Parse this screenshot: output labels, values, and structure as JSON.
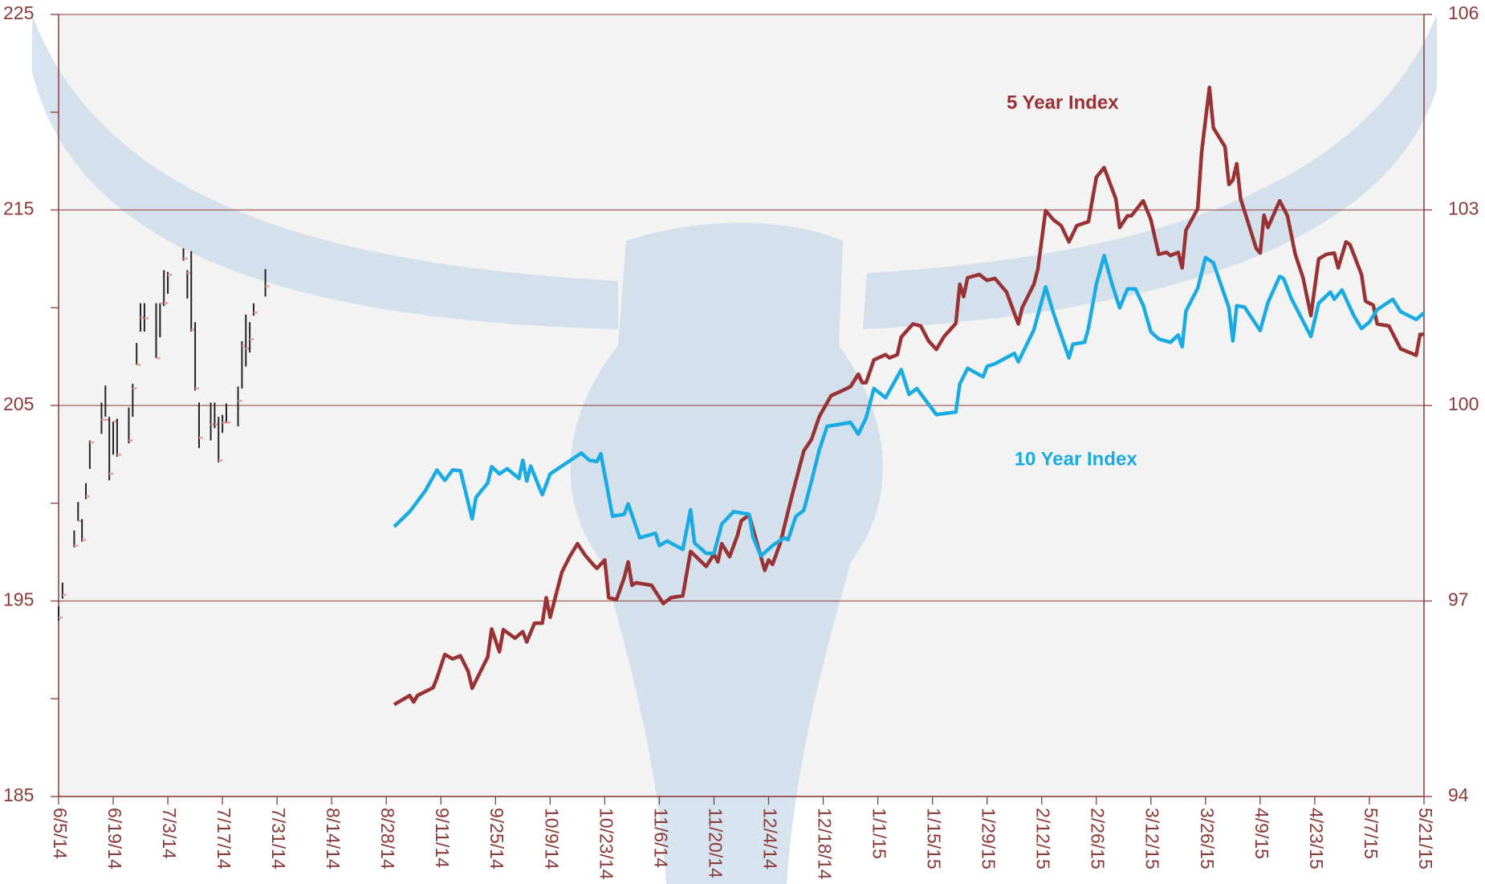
{
  "chart_data": {
    "type": "line",
    "xlim": [
      "6/5/14",
      "5/21/15"
    ],
    "xticks": [
      "6/5/14",
      "6/19/14",
      "7/3/14",
      "7/17/14",
      "7/31/14",
      "8/14/14",
      "8/28/14",
      "9/11/14",
      "9/25/14",
      "10/9/14",
      "10/23/14",
      "11/6/14",
      "11/20/14",
      "12/4/14",
      "12/18/14",
      "1/1/15",
      "1/15/15",
      "1/29/15",
      "2/12/15",
      "2/26/15",
      "3/12/15",
      "3/26/15",
      "4/9/15",
      "4/23/15",
      "5/7/15",
      "5/21/15"
    ],
    "ylim": [
      185,
      225
    ],
    "yticks": [
      185,
      195,
      205,
      215,
      225
    ],
    "yminorticks": [
      190,
      200,
      210,
      220
    ],
    "y2lim": [
      94,
      106
    ],
    "y2ticks": [
      94,
      97,
      100,
      103,
      106
    ],
    "grid": true,
    "axis_color": "#8b3a3a",
    "ohlc": {
      "color": "#222222",
      "close_color": "#e8a0a0",
      "x": [
        "6/5/14",
        "6/6/14",
        "6/9/14",
        "6/10/14",
        "6/11/14",
        "6/12/14",
        "6/13/14",
        "6/16/14",
        "6/17/14",
        "6/18/14",
        "6/19/14",
        "6/20/14",
        "6/23/14",
        "6/24/14",
        "6/25/14",
        "6/26/14",
        "6/27/14",
        "6/30/14",
        "7/1/14",
        "7/2/14",
        "7/3/14",
        "7/7/14",
        "7/8/14",
        "7/9/14",
        "7/10/14",
        "7/11/14",
        "7/14/14",
        "7/15/14",
        "7/16/14",
        "7/17/14",
        "7/18/14",
        "7/21/14",
        "7/22/14",
        "7/23/14",
        "7/24/14",
        "7/25/14",
        "7/28/14"
      ],
      "high": [
        194.73,
        195.94,
        198.61,
        200.06,
        199.19,
        201.03,
        203.21,
        205.15,
        206.02,
        204.42,
        204.18,
        204.32,
        204.9,
        206.11,
        208.2,
        210.23,
        210.23,
        210.23,
        210.23,
        211.92,
        211.83,
        213.04,
        211.92,
        212.89,
        209.26,
        205.15,
        205.15,
        205.15,
        204.42,
        204.52,
        205.1,
        205.97,
        208.29,
        209.65,
        209.26,
        210.23,
        211.97
      ],
      "low": [
        194.0,
        195.12,
        197.74,
        199.09,
        198.03,
        200.21,
        201.76,
        203.55,
        204.42,
        201.17,
        202.48,
        202.38,
        203.06,
        204.42,
        207.08,
        208.78,
        208.78,
        207.42,
        208.49,
        210.08,
        210.71,
        212.41,
        210.47,
        208.78,
        205.77,
        202.82,
        203.21,
        203.84,
        202.09,
        203.6,
        204.13,
        203.93,
        205.87,
        206.99,
        207.71,
        209.6,
        210.57
      ],
      "close": [
        194.15,
        195.31,
        197.83,
        199.09,
        198.12,
        200.35,
        203.11,
        204.27,
        204.27,
        201.51,
        204.18,
        202.48,
        203.21,
        205.87,
        207.08,
        209.5,
        209.46,
        207.42,
        210.23,
        210.23,
        211.68,
        212.51,
        211.78,
        208.87,
        205.87,
        203.35,
        204.03,
        204.03,
        202.19,
        204.13,
        204.13,
        205.24,
        208.05,
        207.91,
        208.39,
        209.75,
        211.1
      ]
    },
    "series": [
      {
        "name": "5 Year Index",
        "color": "#983235",
        "axis": "y2",
        "x": [
          "8/30/14",
          "9/3/14",
          "9/4/14",
          "9/5/14",
          "9/9/14",
          "9/10/14",
          "9/12/14",
          "9/14/14",
          "9/16/14",
          "9/18/14",
          "9/19/14",
          "9/23/14",
          "9/24/14",
          "9/26/14",
          "9/27/14",
          "9/30/14",
          "10/2/14",
          "10/3/14",
          "10/5/14",
          "10/7/14",
          "10/8/14",
          "10/9/14",
          "10/12/14",
          "10/14/14",
          "10/16/14",
          "10/18/14",
          "10/20/14",
          "10/21/14",
          "10/23/14",
          "10/24/14",
          "10/26/14",
          "10/28/14",
          "10/29/14",
          "10/30/14",
          "10/31/14",
          "11/4/14",
          "11/7/14",
          "11/9/14",
          "11/12/14",
          "11/14/14",
          "11/18/14",
          "11/20/14",
          "11/21/14",
          "11/22/14",
          "11/24/14",
          "11/26/14",
          "11/27/14",
          "11/29/14",
          "12/3/14",
          "12/4/14",
          "12/5/14",
          "12/7/14",
          "12/10/14",
          "12/13/14",
          "12/15/14",
          "12/17/14",
          "12/20/14",
          "12/23/14",
          "12/25/14",
          "12/27/14",
          "12/28/14",
          "12/29/14",
          "12/31/14",
          "1/3/15",
          "1/4/15",
          "1/6/15",
          "1/7/15",
          "1/10/15",
          "1/12/15",
          "1/14/15",
          "1/16/15",
          "1/18/15",
          "1/21/15",
          "1/22/15",
          "1/23/15",
          "1/24/15",
          "1/27/15",
          "1/29/15",
          "1/31/15",
          "2/3/15",
          "2/6/15",
          "2/7/15",
          "2/10/15",
          "2/11/15",
          "2/13/15",
          "2/15/15",
          "2/17/15",
          "2/19/15",
          "2/21/15",
          "2/24/15",
          "2/26/15",
          "2/28/15",
          "3/3/15",
          "3/4/15",
          "3/6/15",
          "3/7/15",
          "3/10/15",
          "3/12/15",
          "3/14/15",
          "3/16/15",
          "3/17/15",
          "3/19/15",
          "3/20/15",
          "3/21/15",
          "3/24/15",
          "3/25/15",
          "3/27/15",
          "3/28/15",
          "3/31/15",
          "4/1/15",
          "4/2/15",
          "4/3/15",
          "4/4/15",
          "4/8/15",
          "4/9/15",
          "4/10/15",
          "4/11/15",
          "4/14/15",
          "4/16/15",
          "4/18/15",
          "4/20/15",
          "4/22/15",
          "4/24/15",
          "4/26/15",
          "4/28/15",
          "4/29/15",
          "5/1/15",
          "5/2/15",
          "5/5/15",
          "5/6/15",
          "5/8/15",
          "5/9/15",
          "5/12/15",
          "5/15/15",
          "5/19/15",
          "5/20/15",
          "5/21/15"
        ],
        "values": [
          95.41,
          95.55,
          95.45,
          95.55,
          95.67,
          95.82,
          96.18,
          96.11,
          96.16,
          95.92,
          95.66,
          96.14,
          96.57,
          96.22,
          96.56,
          96.43,
          96.53,
          96.37,
          96.66,
          96.66,
          97.05,
          96.75,
          97.44,
          97.68,
          97.88,
          97.7,
          97.56,
          97.5,
          97.63,
          97.05,
          97.02,
          97.36,
          97.6,
          97.24,
          97.28,
          97.24,
          96.96,
          97.05,
          97.08,
          97.76,
          97.53,
          97.72,
          97.6,
          97.88,
          97.68,
          98.0,
          98.23,
          98.32,
          97.47,
          97.63,
          97.56,
          97.89,
          98.62,
          99.3,
          99.48,
          99.83,
          100.15,
          100.23,
          100.29,
          100.48,
          100.35,
          100.35,
          100.7,
          100.78,
          100.73,
          100.78,
          101.05,
          101.25,
          101.22,
          100.99,
          100.86,
          101.06,
          101.26,
          101.86,
          101.67,
          101.96,
          102.01,
          101.92,
          101.95,
          101.74,
          101.25,
          101.5,
          101.86,
          102.09,
          102.99,
          102.85,
          102.76,
          102.51,
          102.76,
          102.82,
          103.5,
          103.65,
          103.17,
          102.73,
          102.91,
          102.91,
          103.14,
          102.85,
          102.32,
          102.35,
          102.3,
          102.35,
          102.11,
          102.69,
          103.02,
          103.89,
          104.88,
          104.26,
          103.97,
          103.39,
          103.46,
          103.71,
          103.17,
          102.41,
          102.34,
          102.92,
          102.73,
          103.14,
          102.91,
          102.32,
          101.96,
          101.38,
          102.25,
          102.32,
          102.34,
          102.11,
          102.51,
          102.47,
          102.01,
          101.6,
          101.54,
          101.25,
          101.22,
          100.87,
          100.77,
          101.09,
          101.09
        ]
      },
      {
        "name": "10 Year Index",
        "color": "#1aabe2",
        "axis": "y2",
        "x": [
          "8/30/14",
          "9/3/14",
          "9/7/14",
          "9/10/14",
          "9/12/14",
          "9/14/14",
          "9/16/14",
          "9/19/14",
          "9/20/14",
          "9/23/14",
          "9/24/14",
          "9/26/14",
          "9/28/14",
          "10/1/14",
          "10/2/14",
          "10/3/14",
          "10/4/14",
          "10/7/14",
          "10/9/14",
          "10/17/14",
          "10/19/14",
          "10/21/14",
          "10/22/14",
          "10/25/14",
          "10/28/14",
          "10/29/14",
          "11/1/14",
          "11/5/14",
          "11/6/14",
          "11/8/14",
          "11/12/14",
          "11/14/14",
          "11/15/14",
          "11/18/14",
          "11/20/14",
          "11/22/14",
          "11/25/14",
          "11/29/14",
          "11/30/14",
          "12/2/14",
          "12/5/14",
          "12/8/14",
          "12/9/14",
          "12/11/14",
          "12/13/14",
          "12/15/14",
          "12/17/14",
          "12/19/14",
          "12/25/14",
          "12/27/14",
          "12/29/14",
          "12/31/14",
          "1/3/15",
          "1/7/15",
          "1/9/15",
          "1/11/15",
          "1/16/15",
          "1/21/15",
          "1/22/15",
          "1/24/15",
          "1/28/15",
          "1/29/15",
          "1/31/15",
          "2/5/15",
          "2/6/15",
          "2/10/15",
          "2/13/15",
          "2/15/15",
          "2/19/15",
          "2/20/15",
          "2/23/15",
          "2/24/15",
          "2/26/15",
          "2/28/15",
          "3/2/15",
          "3/4/15",
          "3/6/15",
          "3/8/15",
          "3/10/15",
          "3/12/15",
          "3/14/15",
          "3/17/15",
          "3/19/15",
          "3/20/15",
          "3/21/15",
          "3/24/15",
          "3/26/15",
          "3/28/15",
          "4/1/15",
          "4/2/15",
          "4/3/15",
          "4/5/15",
          "4/9/15",
          "4/11/15",
          "4/14/15",
          "4/15/15",
          "4/17/15",
          "4/22/15",
          "4/24/15",
          "4/27/15",
          "4/28/15",
          "4/30/15",
          "5/3/15",
          "5/5/15",
          "5/7/15",
          "5/9/15",
          "5/13/15",
          "5/15/15",
          "5/19/15",
          "5/21/15"
        ],
        "values": [
          98.14,
          98.37,
          98.69,
          99.01,
          98.85,
          99.01,
          99.0,
          98.26,
          98.59,
          98.81,
          99.06,
          98.95,
          99.03,
          98.88,
          99.16,
          98.84,
          99.07,
          98.63,
          98.95,
          99.27,
          99.16,
          99.14,
          99.26,
          98.3,
          98.33,
          98.49,
          97.97,
          98.04,
          97.85,
          97.92,
          97.79,
          98.4,
          97.89,
          97.73,
          97.73,
          98.18,
          98.37,
          98.33,
          97.98,
          97.69,
          97.85,
          97.97,
          97.94,
          98.3,
          98.39,
          98.84,
          99.32,
          99.68,
          99.74,
          99.56,
          99.81,
          100.26,
          100.12,
          100.55,
          100.17,
          100.26,
          99.86,
          99.9,
          100.33,
          100.57,
          100.44,
          100.6,
          100.64,
          100.8,
          100.67,
          101.16,
          101.82,
          101.42,
          100.73,
          100.94,
          100.97,
          101.19,
          101.86,
          102.3,
          101.87,
          101.5,
          101.79,
          101.79,
          101.54,
          101.13,
          101.02,
          100.97,
          101.08,
          100.9,
          101.45,
          101.8,
          102.27,
          102.19,
          101.5,
          100.99,
          101.53,
          101.51,
          101.15,
          101.58,
          101.98,
          101.95,
          101.64,
          101.06,
          101.57,
          101.74,
          101.63,
          101.77,
          101.38,
          101.18,
          101.28,
          101.47,
          101.63,
          101.44,
          101.32,
          101.42
        ]
      }
    ],
    "annotations": [
      {
        "text": "5 Year Index",
        "color": "#983235",
        "x": "2/3/15",
        "y": 104.63
      },
      {
        "text": "10 Year Index",
        "color": "#1aabe2",
        "x": "2/5/15",
        "y": 99.16
      }
    ]
  }
}
